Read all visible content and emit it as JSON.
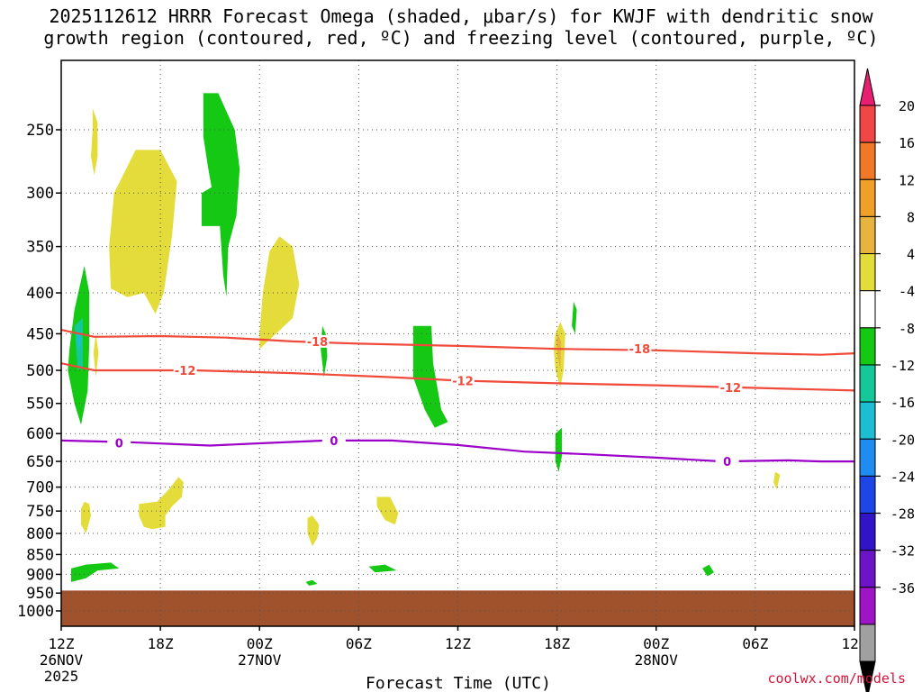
{
  "title_line1": "2025112612 HRRR Forecast Omega (shaded, μbar/s) for KWJF with dendritic snow",
  "title_line2": "growth region (contoured, red, ºC) and freezing level (contoured, purple, ºC)",
  "credit": "coolwx.com/models",
  "chart_data": {
    "type": "contour",
    "title": "2025112612 HRRR Forecast Omega (shaded, μbar/s) for KWJF with dendritic snow growth region (contoured, red, ºC) and freezing level (contoured, purple, ºC)",
    "xlabel": "Forecast Time (UTC)",
    "ylabel": "",
    "x_ticks": [
      {
        "h": 0,
        "lines": [
          "12Z",
          "26NOV",
          "2025"
        ]
      },
      {
        "h": 6,
        "lines": [
          "18Z"
        ]
      },
      {
        "h": 12,
        "lines": [
          "00Z",
          "27NOV"
        ]
      },
      {
        "h": 18,
        "lines": [
          "06Z"
        ]
      },
      {
        "h": 24,
        "lines": [
          "12Z"
        ]
      },
      {
        "h": 30,
        "lines": [
          "18Z"
        ]
      },
      {
        "h": 36,
        "lines": [
          "00Z",
          "28NOV"
        ]
      },
      {
        "h": 42,
        "lines": [
          "06Z"
        ]
      },
      {
        "h": 48,
        "lines": [
          "12Z"
        ]
      }
    ],
    "xlim": [
      0,
      48
    ],
    "y_ticks": [
      250,
      300,
      350,
      400,
      450,
      500,
      550,
      600,
      650,
      700,
      750,
      800,
      850,
      900,
      950,
      1000
    ],
    "ylim_hpa": [
      1035,
      190
    ],
    "y_scale": "log",
    "ground_pressure_hpa": 943,
    "colors": {
      "ground": "#a0522d",
      "grid": "#555555",
      "dgz": "#f04a3a",
      "freezing": "#9c00c8",
      "omega_pos_4_8": "#e3dc3a",
      "omega_pos_8_12": "#e8b440",
      "omega_neg_4_8": "#14c814",
      "omega_neg_8_12": "#14c89a",
      "omega_neg_12_16": "#1ebed2"
    },
    "colorbar": {
      "labels": [
        "20",
        "16",
        "12",
        "8",
        "4",
        "-4",
        "-8",
        "-12",
        "-16",
        "-20",
        "-24",
        "-28",
        "-32",
        "-36"
      ],
      "colors": [
        "#e81e73",
        "#f04646",
        "#f07828",
        "#f0a028",
        "#e8b440",
        "#e3dc3a",
        "#ffffff",
        "#14c814",
        "#14c89a",
        "#1ebed2",
        "#1e8cf0",
        "#1e46e6",
        "#3214c8",
        "#6e14c8",
        "#a014c8",
        "#a0a0a0",
        "#000000"
      ]
    },
    "contours": [
      {
        "name": "-18",
        "color": "dgz",
        "points": [
          [
            0,
            445
          ],
          [
            2,
            454
          ],
          [
            6,
            453
          ],
          [
            10,
            455
          ],
          [
            14,
            460
          ],
          [
            18,
            463
          ],
          [
            24,
            466
          ],
          [
            30,
            470
          ],
          [
            36,
            472
          ],
          [
            42,
            476
          ],
          [
            46,
            478
          ],
          [
            48,
            476
          ]
        ],
        "label_at": [
          [
            15.5,
            460
          ],
          [
            35,
            470
          ]
        ]
      },
      {
        "name": "-12",
        "color": "dgz",
        "points": [
          [
            0,
            490
          ],
          [
            2,
            500
          ],
          [
            8,
            500
          ],
          [
            14,
            504
          ],
          [
            20,
            510
          ],
          [
            24,
            515
          ],
          [
            30,
            519
          ],
          [
            36,
            522
          ],
          [
            42,
            526
          ],
          [
            48,
            530
          ]
        ],
        "label_at": [
          [
            7.5,
            500
          ],
          [
            24.3,
            515
          ],
          [
            40.5,
            525
          ]
        ]
      },
      {
        "name": "0",
        "color": "freezing",
        "points": [
          [
            0,
            612
          ],
          [
            4,
            615
          ],
          [
            9,
            621
          ],
          [
            12,
            617
          ],
          [
            16,
            612
          ],
          [
            20,
            612
          ],
          [
            24,
            620
          ],
          [
            28,
            632
          ],
          [
            32,
            637
          ],
          [
            36,
            643
          ],
          [
            40,
            650
          ],
          [
            44,
            648
          ],
          [
            46,
            650
          ],
          [
            48,
            650
          ]
        ],
        "label_at": [
          [
            3.5,
            616
          ],
          [
            16.5,
            612
          ],
          [
            40.3,
            650
          ]
        ]
      }
    ],
    "omega_regions": [
      {
        "value": 5,
        "points": [
          [
            1.9,
            235
          ],
          [
            2.2,
            245
          ],
          [
            2.2,
            270
          ],
          [
            2.0,
            285
          ],
          [
            1.8,
            270
          ],
          [
            1.9,
            250
          ]
        ]
      },
      {
        "value": 5,
        "points": [
          [
            3.2,
            300
          ],
          [
            4.5,
            265
          ],
          [
            6,
            265
          ],
          [
            7,
            290
          ],
          [
            6.7,
            340
          ],
          [
            6.2,
            400
          ],
          [
            5.7,
            425
          ],
          [
            5,
            400
          ],
          [
            4,
            405
          ],
          [
            3,
            395
          ],
          [
            2.9,
            350
          ]
        ]
      },
      {
        "value": 5,
        "points": [
          [
            12,
            450
          ],
          [
            12.2,
            400
          ],
          [
            12.6,
            355
          ],
          [
            13.2,
            340
          ],
          [
            14,
            350
          ],
          [
            14.4,
            390
          ],
          [
            14,
            430
          ],
          [
            13,
            450
          ],
          [
            12,
            470
          ]
        ]
      },
      {
        "value": 5,
        "points": [
          [
            2.1,
            450
          ],
          [
            2.25,
            475
          ],
          [
            2.1,
            510
          ],
          [
            1.95,
            475
          ]
        ]
      },
      {
        "value": 5,
        "points": [
          [
            29.9,
            450
          ],
          [
            30.2,
            435
          ],
          [
            30.5,
            450
          ],
          [
            30.4,
            500
          ],
          [
            30.2,
            525
          ],
          [
            29.9,
            500
          ],
          [
            29.8,
            470
          ]
        ]
      },
      {
        "value": 9,
        "points": [
          [
            30.05,
            450
          ],
          [
            30.25,
            460
          ],
          [
            30.2,
            500
          ],
          [
            30.05,
            480
          ],
          [
            29.95,
            460
          ]
        ]
      },
      {
        "value": 5,
        "points": [
          [
            1.2,
            745
          ],
          [
            1.4,
            730
          ],
          [
            1.7,
            735
          ],
          [
            1.8,
            760
          ],
          [
            1.5,
            800
          ],
          [
            1.2,
            780
          ]
        ]
      },
      {
        "value": 5,
        "points": [
          [
            4.7,
            735
          ],
          [
            5.8,
            730
          ],
          [
            6.5,
            705
          ],
          [
            7.1,
            680
          ],
          [
            7.4,
            690
          ],
          [
            7.3,
            720
          ],
          [
            6.7,
            740
          ],
          [
            6.3,
            760
          ],
          [
            6.3,
            785
          ],
          [
            5.5,
            790
          ],
          [
            5,
            785
          ],
          [
            4.7,
            760
          ]
        ]
      },
      {
        "value": 5,
        "points": [
          [
            14.9,
            765
          ],
          [
            15.2,
            760
          ],
          [
            15.6,
            780
          ],
          [
            15.5,
            810
          ],
          [
            15.2,
            830
          ],
          [
            14.9,
            800
          ]
        ]
      },
      {
        "value": 5,
        "points": [
          [
            19.1,
            720
          ],
          [
            19.9,
            720
          ],
          [
            20.4,
            755
          ],
          [
            20.2,
            780
          ],
          [
            19.6,
            770
          ],
          [
            19.1,
            740
          ]
        ]
      },
      {
        "value": 5,
        "points": [
          [
            43.2,
            670
          ],
          [
            43.5,
            675
          ],
          [
            43.3,
            705
          ],
          [
            43.1,
            690
          ]
        ]
      },
      {
        "value": -5,
        "points": [
          [
            8.6,
            225
          ],
          [
            9.5,
            225
          ],
          [
            10.5,
            250
          ],
          [
            10.8,
            280
          ],
          [
            10.6,
            320
          ],
          [
            10.1,
            350
          ],
          [
            10.0,
            405
          ],
          [
            9.8,
            380
          ],
          [
            9.6,
            330
          ],
          [
            8.5,
            330
          ],
          [
            8.5,
            300
          ],
          [
            9.1,
            295
          ],
          [
            8.9,
            280
          ],
          [
            8.6,
            255
          ]
        ]
      },
      {
        "value": -5,
        "points": [
          [
            0.5,
            470
          ],
          [
            0.8,
            420
          ],
          [
            1.4,
            370
          ],
          [
            1.7,
            400
          ],
          [
            1.7,
            460
          ],
          [
            1.6,
            530
          ],
          [
            1.2,
            585
          ],
          [
            0.8,
            550
          ],
          [
            0.4,
            500
          ]
        ]
      },
      {
        "value": -10,
        "points": [
          [
            0.8,
            440
          ],
          [
            1.3,
            430
          ],
          [
            1.3,
            495
          ],
          [
            1.0,
            500
          ]
        ]
      },
      {
        "value": -14,
        "points": [
          [
            1.0,
            445
          ],
          [
            1.2,
            455
          ],
          [
            1.1,
            475
          ],
          [
            0.95,
            460
          ]
        ]
      },
      {
        "value": -5,
        "points": [
          [
            15.8,
            440
          ],
          [
            16.0,
            450
          ],
          [
            16.1,
            480
          ],
          [
            15.9,
            510
          ],
          [
            15.7,
            470
          ]
        ]
      },
      {
        "value": -5,
        "points": [
          [
            21.3,
            440
          ],
          [
            22.4,
            440
          ],
          [
            22.5,
            490
          ],
          [
            23.0,
            560
          ],
          [
            23.4,
            580
          ],
          [
            22.6,
            590
          ],
          [
            22.0,
            560
          ],
          [
            21.3,
            510
          ]
        ]
      },
      {
        "value": -5,
        "points": [
          [
            31.0,
            410
          ],
          [
            31.2,
            420
          ],
          [
            31.1,
            450
          ],
          [
            30.9,
            440
          ]
        ]
      },
      {
        "value": -5,
        "points": [
          [
            29.9,
            600
          ],
          [
            30.3,
            590
          ],
          [
            30.3,
            640
          ],
          [
            30.1,
            670
          ],
          [
            29.9,
            650
          ]
        ]
      },
      {
        "value": -5,
        "points": [
          [
            0.6,
            885
          ],
          [
            1.5,
            875
          ],
          [
            3.0,
            870
          ],
          [
            3.5,
            885
          ],
          [
            2.2,
            890
          ],
          [
            1.5,
            910
          ],
          [
            0.6,
            920
          ]
        ]
      },
      {
        "value": -5,
        "points": [
          [
            14.8,
            920
          ],
          [
            15.2,
            915
          ],
          [
            15.5,
            925
          ],
          [
            15.0,
            930
          ]
        ]
      },
      {
        "value": -5,
        "points": [
          [
            18.6,
            880
          ],
          [
            19.6,
            875
          ],
          [
            20.3,
            890
          ],
          [
            19.0,
            895
          ]
        ]
      },
      {
        "value": -5,
        "points": [
          [
            38.8,
            885
          ],
          [
            39.2,
            875
          ],
          [
            39.5,
            895
          ],
          [
            39.1,
            905
          ]
        ]
      }
    ]
  }
}
